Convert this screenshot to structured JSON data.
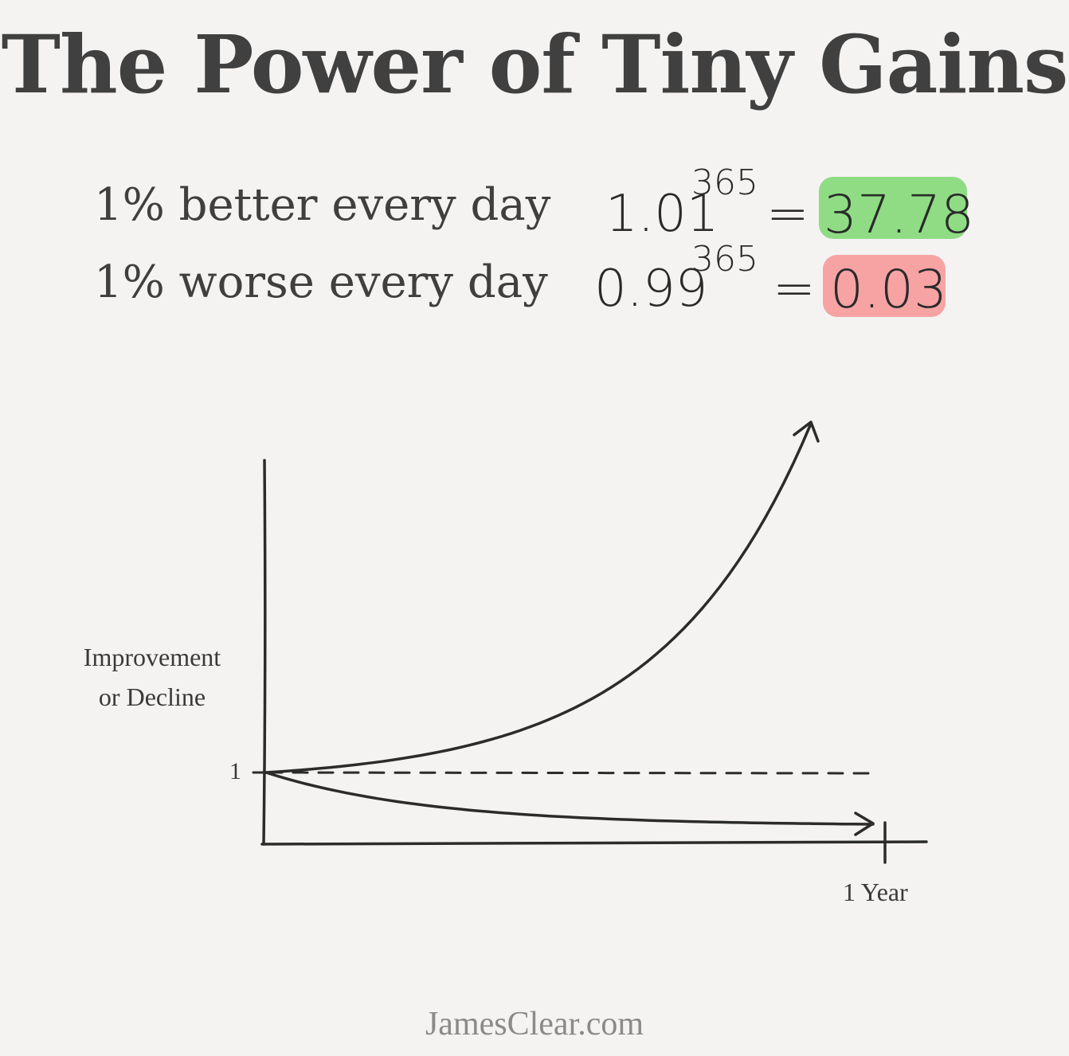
{
  "title": "The Power of Tiny Gains",
  "equations": [
    {
      "label": "1% better every day",
      "base": "1.01",
      "exponent": "365",
      "equals": "=",
      "result": "37.78",
      "highlight": "#8fdc84"
    },
    {
      "label": "1% worse every day",
      "base": "0.99",
      "exponent": "365",
      "equals": "=",
      "result": "0.03",
      "highlight": "#f7a3a3"
    }
  ],
  "chart_data": {
    "type": "line",
    "ylabel_line1": "Improvement",
    "ylabel_line2": "or Decline",
    "y_tick": "1",
    "x_tick": "1 Year",
    "baseline": 1,
    "series": [
      {
        "rate": 1.01,
        "days": 365,
        "final": 37.78
      },
      {
        "rate": 0.99,
        "days": 365,
        "final": 0.03
      }
    ]
  },
  "footer": "JamesClear.com"
}
